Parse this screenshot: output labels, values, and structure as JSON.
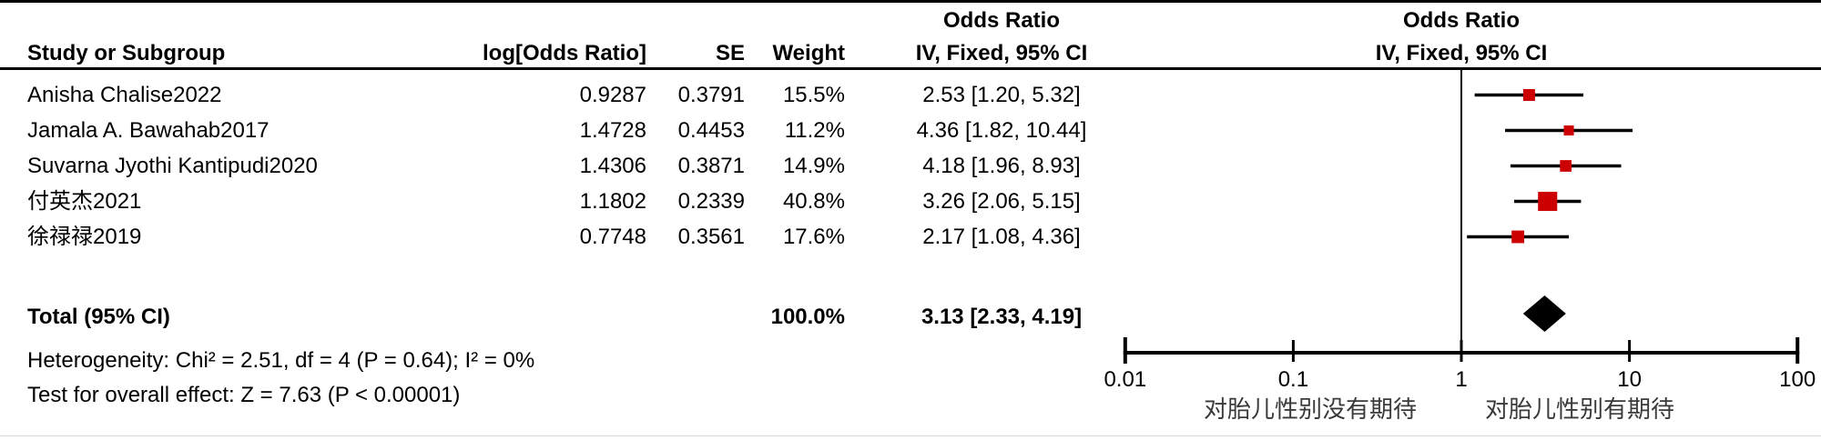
{
  "figure_title": "Forest plot - Odds Ratio (IV, Fixed, 95% CI)",
  "table": {
    "headers": {
      "study": "Study or Subgroup",
      "log_or": "log[Odds Ratio]",
      "se": "SE",
      "weight": "Weight",
      "or_title_left": "Odds Ratio",
      "or_sub_left": "IV, Fixed, 95% CI",
      "or_title_right": "Odds Ratio",
      "or_sub_right": "IV, Fixed, 95% CI"
    },
    "rows": [
      {
        "study": "Anisha Chalise2022",
        "log_or": "0.9287",
        "se": "0.3791",
        "weight": "15.5%",
        "ci": "2.53 [1.20, 5.32]"
      },
      {
        "study": "Jamala A. Bawahab2017",
        "log_or": "1.4728",
        "se": "0.4453",
        "weight": "11.2%",
        "ci": "4.36 [1.82, 10.44]"
      },
      {
        "study": "Suvarna Jyothi Kantipudi2020",
        "log_or": "1.4306",
        "se": "0.3871",
        "weight": "14.9%",
        "ci": "4.18 [1.96, 8.93]"
      },
      {
        "study": "付英杰2021",
        "log_or": "1.1802",
        "se": "0.2339",
        "weight": "40.8%",
        "ci": "3.26 [2.06, 5.15]"
      },
      {
        "study": "徐禄禄2019",
        "log_or": "0.7748",
        "se": "0.3561",
        "weight": "17.6%",
        "ci": "2.17 [1.08, 4.36]"
      }
    ],
    "total": {
      "label": "Total (95% CI)",
      "weight": "100.0%",
      "ci": "3.13 [2.33, 4.19]"
    },
    "heterogeneity": "Heterogeneity: Chi² = 2.51, df = 4 (P = 0.64); I² = 0%",
    "overall_effect": "Test for overall effect: Z = 7.63 (P < 0.00001)"
  },
  "chart_data": {
    "type": "forest",
    "x_scale": "log10",
    "axis_range": [
      0.01,
      100
    ],
    "axis_ticks": [
      0.01,
      0.1,
      1,
      10,
      100
    ],
    "axis_tick_labels": [
      "0.01",
      "0.1",
      "1",
      "10",
      "100"
    ],
    "null_line": 1,
    "effect_model": "IV, Fixed, 95% CI",
    "studies": [
      {
        "name": "Anisha Chalise2022",
        "or": 2.53,
        "ci_low": 1.2,
        "ci_high": 5.32,
        "weight": 15.5
      },
      {
        "name": "Jamala A. Bawahab2017",
        "or": 4.36,
        "ci_low": 1.82,
        "ci_high": 10.44,
        "weight": 11.2
      },
      {
        "name": "Suvarna Jyothi Kantipudi2020",
        "or": 4.18,
        "ci_low": 1.96,
        "ci_high": 8.93,
        "weight": 14.9
      },
      {
        "name": "付英杰2021",
        "or": 3.26,
        "ci_low": 2.06,
        "ci_high": 5.15,
        "weight": 40.8
      },
      {
        "name": "徐禄禄2019",
        "or": 2.17,
        "ci_low": 1.08,
        "ci_high": 4.36,
        "weight": 17.6
      }
    ],
    "total": {
      "or": 3.13,
      "ci_low": 2.33,
      "ci_high": 4.19,
      "weight": 100.0
    },
    "favours_left": "对胎儿性别没有期待",
    "favours_right": "对胎儿性别有期待",
    "colors": {
      "square": "#CC0000",
      "line": "#000000",
      "diamond": "#000000",
      "favours_text": "#3a3a3a"
    }
  }
}
